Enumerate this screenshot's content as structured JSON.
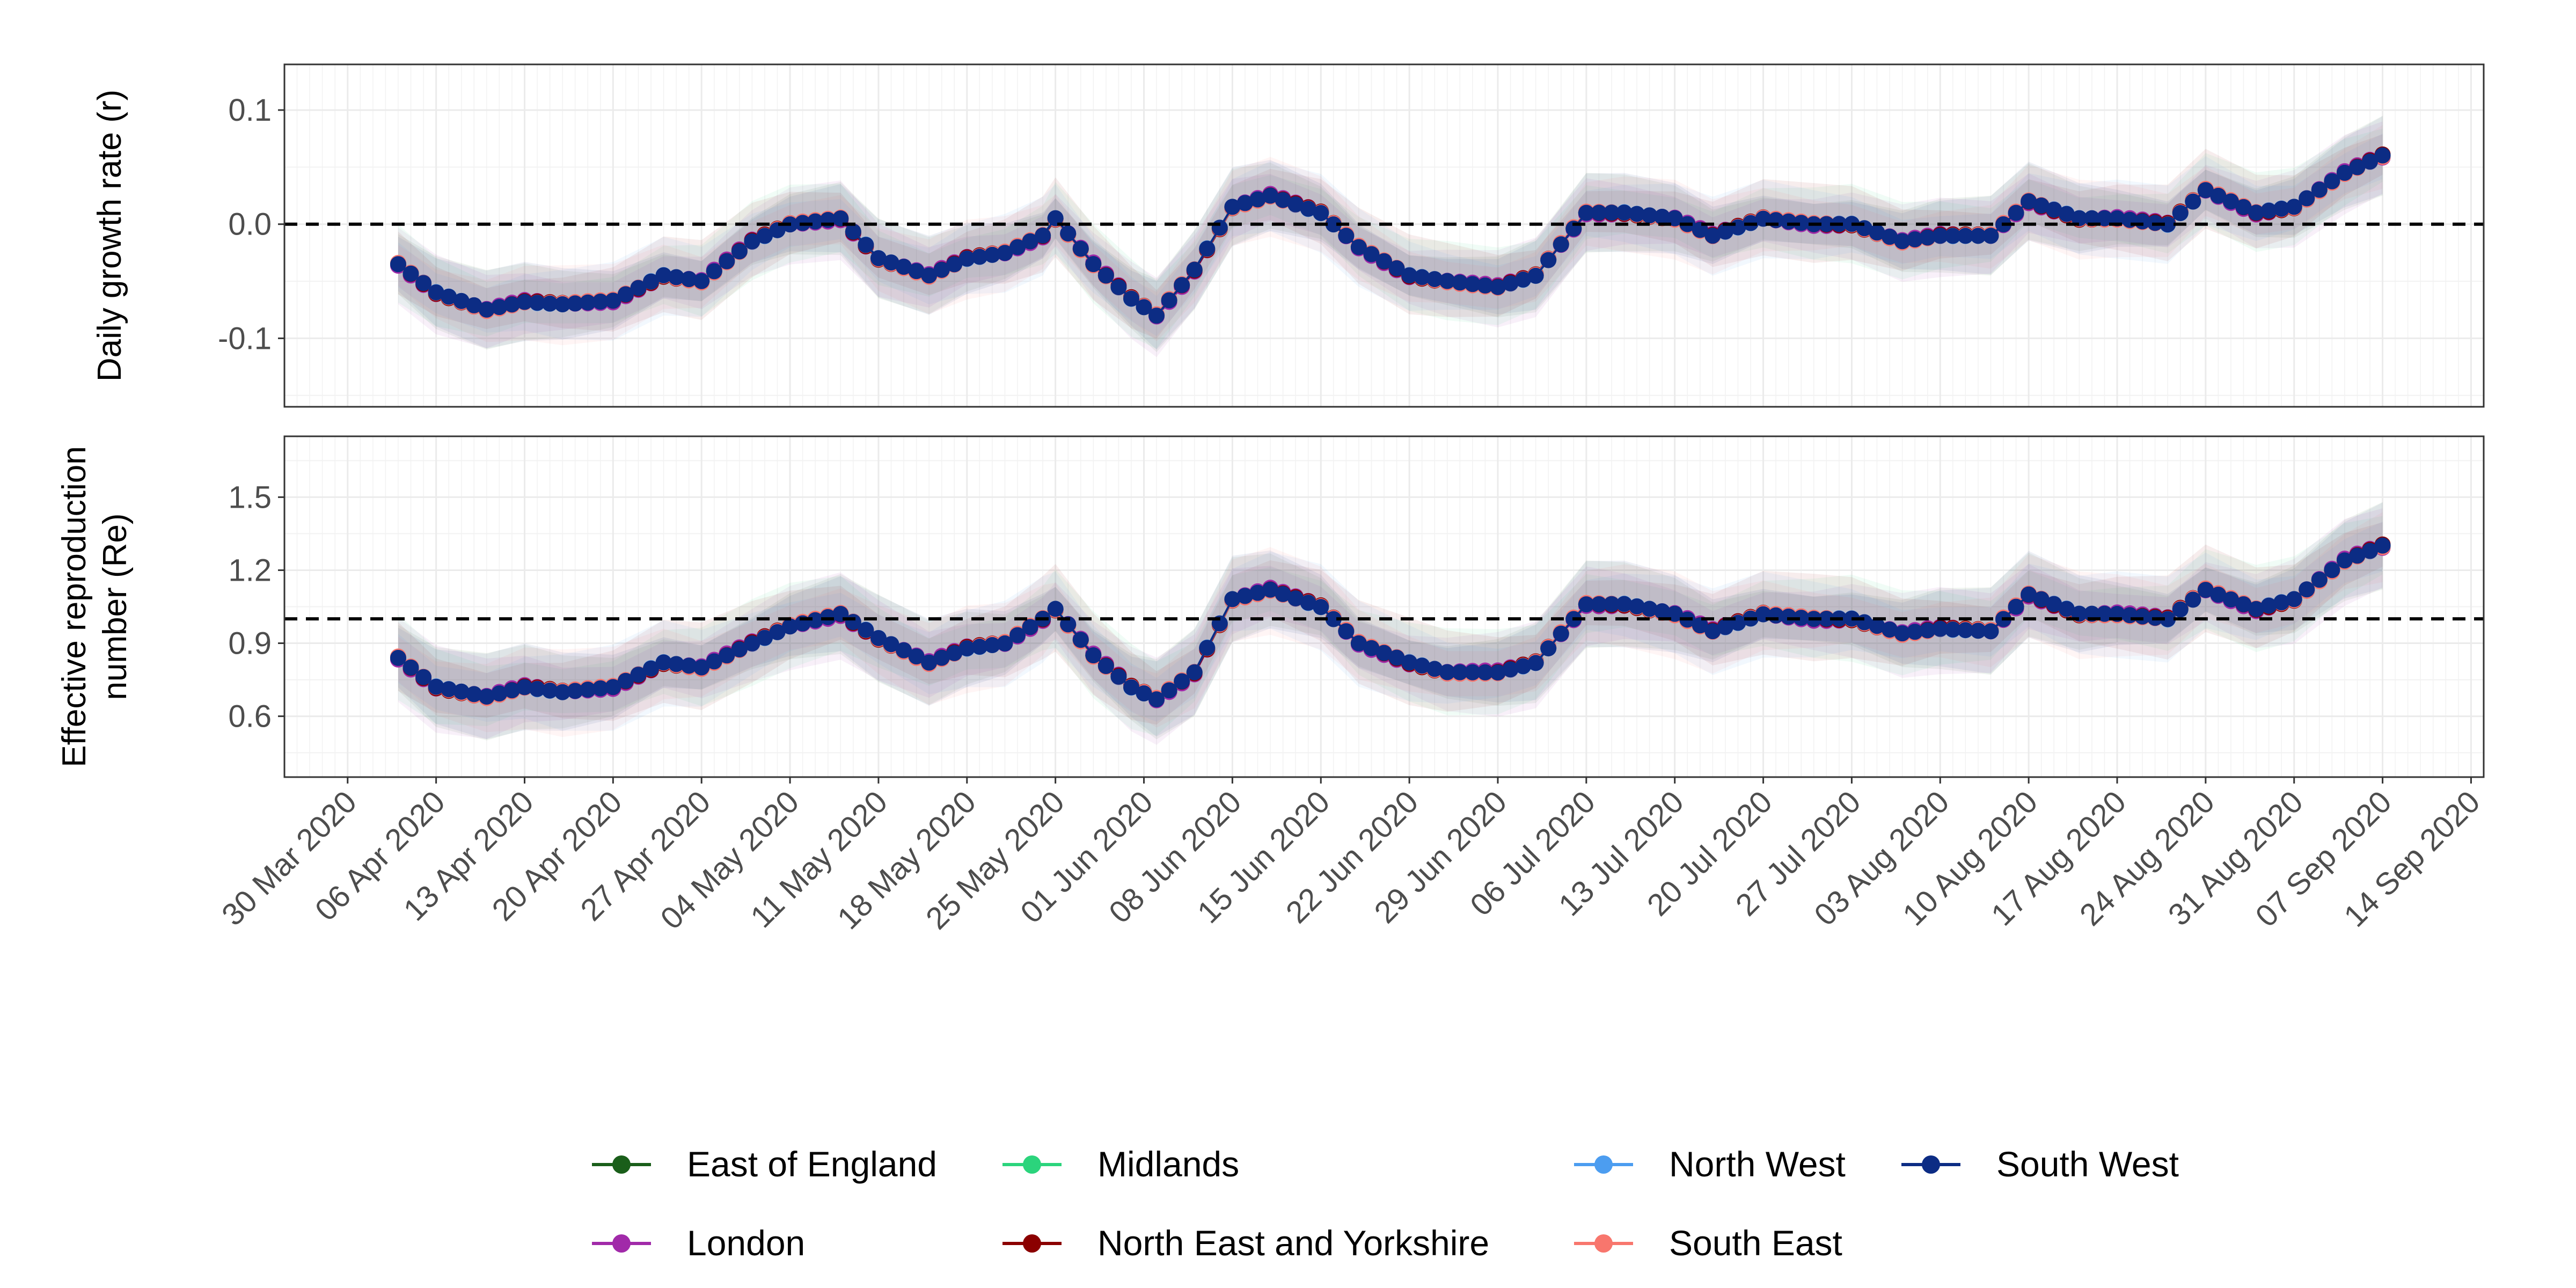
{
  "chart_data": {
    "type": "line",
    "x_axis": {
      "tick_labels": [
        "30 Mar 2020",
        "06 Apr 2020",
        "13 Apr 2020",
        "20 Apr 2020",
        "27 Apr 2020",
        "04 May 2020",
        "11 May 2020",
        "18 May 2020",
        "25 May 2020",
        "01 Jun 2020",
        "08 Jun 2020",
        "15 Jun 2020",
        "22 Jun 2020",
        "29 Jun 2020",
        "06 Jul 2020",
        "13 Jul 2020",
        "20 Jul 2020",
        "27 Jul 2020",
        "03 Aug 2020",
        "10 Aug 2020",
        "17 Aug 2020",
        "24 Aug 2020",
        "31 Aug 2020",
        "07 Sep 2020",
        "14 Sep 2020"
      ],
      "tick_dates": [
        "2020-03-30",
        "2020-04-06",
        "2020-04-13",
        "2020-04-20",
        "2020-04-27",
        "2020-05-04",
        "2020-05-11",
        "2020-05-18",
        "2020-05-25",
        "2020-06-01",
        "2020-06-08",
        "2020-06-15",
        "2020-06-22",
        "2020-06-29",
        "2020-07-06",
        "2020-07-13",
        "2020-07-20",
        "2020-07-27",
        "2020-08-03",
        "2020-08-10",
        "2020-08-17",
        "2020-08-24",
        "2020-08-31",
        "2020-09-07",
        "2020-09-14"
      ],
      "range": [
        "2020-03-25",
        "2020-09-15"
      ]
    },
    "dates": [
      "2020-04-03",
      "2020-04-06",
      "2020-04-10",
      "2020-04-13",
      "2020-04-16",
      "2020-04-20",
      "2020-04-24",
      "2020-04-27",
      "2020-05-01",
      "2020-05-04",
      "2020-05-08",
      "2020-05-11",
      "2020-05-15",
      "2020-05-18",
      "2020-05-21",
      "2020-05-24",
      "2020-05-25",
      "2020-05-28",
      "2020-05-31",
      "2020-06-02",
      "2020-06-05",
      "2020-06-08",
      "2020-06-11",
      "2020-06-15",
      "2020-06-18",
      "2020-06-22",
      "2020-06-25",
      "2020-06-29",
      "2020-07-02",
      "2020-07-06",
      "2020-07-09",
      "2020-07-13",
      "2020-07-16",
      "2020-07-20",
      "2020-07-24",
      "2020-07-27",
      "2020-07-31",
      "2020-08-03",
      "2020-08-07",
      "2020-08-10",
      "2020-08-14",
      "2020-08-17",
      "2020-08-21",
      "2020-08-24",
      "2020-08-28",
      "2020-08-31",
      "2020-09-04",
      "2020-09-07"
    ],
    "panels": [
      {
        "ylabel": [
          "Daily growth rate (r)"
        ],
        "ylim": [
          -0.16,
          0.14
        ],
        "ticks": [
          0.1,
          0.0,
          -0.1
        ],
        "tick_labels": [
          "0.1",
          "0.0",
          "-0.1"
        ],
        "reference_line": 0.0,
        "base": [
          -0.035,
          -0.06,
          -0.075,
          -0.068,
          -0.07,
          -0.067,
          -0.045,
          -0.05,
          -0.015,
          0.0,
          0.005,
          -0.03,
          -0.045,
          -0.03,
          -0.025,
          -0.01,
          0.005,
          -0.035,
          -0.065,
          -0.08,
          -0.04,
          0.015,
          0.025,
          0.01,
          -0.02,
          -0.045,
          -0.05,
          -0.055,
          -0.045,
          0.01,
          0.01,
          0.005,
          -0.01,
          0.005,
          0.0,
          0.0,
          -0.015,
          -0.01,
          -0.01,
          0.02,
          0.005,
          0.005,
          0.0,
          0.03,
          0.01,
          0.015,
          0.045,
          0.06
        ],
        "band_halfwidth": 0.035
      },
      {
        "ylabel": [
          "Effective reproduction",
          "number (Re)"
        ],
        "ylim": [
          0.35,
          1.75
        ],
        "ticks": [
          1.5,
          1.2,
          0.9,
          0.6
        ],
        "tick_labels": [
          "1.5",
          "1.2",
          "0.9",
          "0.6"
        ],
        "reference_line": 1.0,
        "base": [
          0.84,
          0.72,
          0.68,
          0.72,
          0.7,
          0.72,
          0.82,
          0.8,
          0.9,
          0.97,
          1.02,
          0.92,
          0.82,
          0.88,
          0.9,
          1.0,
          1.04,
          0.85,
          0.72,
          0.67,
          0.78,
          1.08,
          1.12,
          1.05,
          0.9,
          0.82,
          0.78,
          0.78,
          0.82,
          1.06,
          1.06,
          1.02,
          0.95,
          1.02,
          1.0,
          1.0,
          0.94,
          0.96,
          0.95,
          1.1,
          1.02,
          1.02,
          1.0,
          1.12,
          1.04,
          1.08,
          1.24,
          1.3
        ],
        "band_halfwidth": 0.18
      }
    ],
    "series": [
      {
        "name": "East of England",
        "color": "#1a5e1a",
        "offset": 0.0
      },
      {
        "name": "London",
        "color": "#a12aa9",
        "offset": -0.15
      },
      {
        "name": "Midlands",
        "color": "#2bd47c",
        "offset": 0.05
      },
      {
        "name": "North East and Yorkshire",
        "color": "#8b0000",
        "offset": 0.1
      },
      {
        "name": "North West",
        "color": "#4c9df0",
        "offset": -0.05
      },
      {
        "name": "South East",
        "color": "#f8766d",
        "offset": -0.1
      },
      {
        "name": "South West",
        "color": "#0c2c84",
        "offset": 0.02
      }
    ],
    "legend": {
      "position": "bottom",
      "rows": [
        [
          "East of England",
          "Midlands",
          "North West",
          "South West"
        ],
        [
          "London",
          "North East and Yorkshire",
          "South East"
        ]
      ]
    },
    "grid": true
  }
}
